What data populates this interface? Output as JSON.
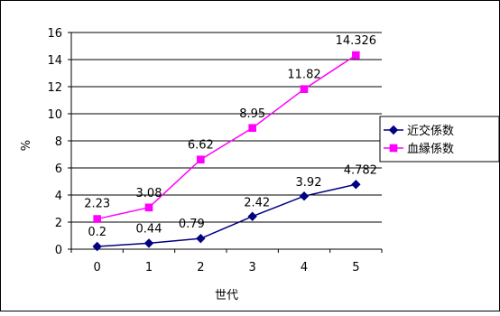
{
  "chart_data": {
    "type": "line",
    "x": [
      0,
      1,
      2,
      3,
      4,
      5
    ],
    "xlabel": "世代",
    "ylabel": "%",
    "ylim": [
      0,
      16
    ],
    "yticks": [
      0,
      2,
      4,
      6,
      8,
      10,
      12,
      14,
      16
    ],
    "grid": true,
    "legend_position": "right",
    "series": [
      {
        "name": "近交係数",
        "color": "#000080",
        "marker": "diamond",
        "values": [
          0.2,
          0.44,
          0.79,
          2.42,
          3.92,
          4.782
        ],
        "labels": [
          "0.2",
          "0.44",
          "0.79",
          "2.42",
          "3.92",
          "4.782"
        ]
      },
      {
        "name": "血縁係数",
        "color": "#ff00ff",
        "marker": "square",
        "values": [
          2.23,
          3.08,
          6.62,
          8.95,
          11.82,
          14.326
        ],
        "labels": [
          "2.23",
          "3.08",
          "6.62",
          "8.95",
          "11.82",
          "14.326"
        ]
      }
    ]
  }
}
